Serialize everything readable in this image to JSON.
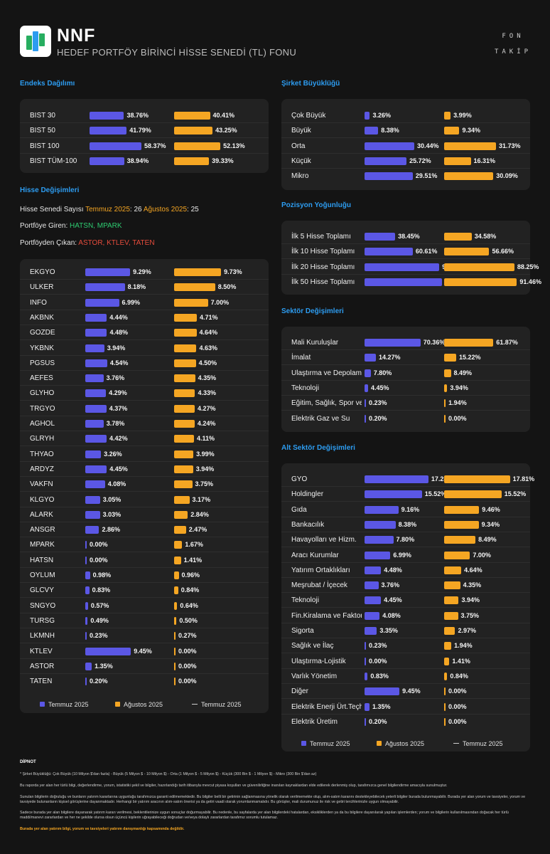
{
  "header": {
    "fund_code": "NNF",
    "fund_name": "HEDEF PORTFÖY BİRİNCİ HİSSE SENEDİ (TL) FONU",
    "brand_line1": "FON",
    "brand_line2": "TAKİP"
  },
  "colors": {
    "temmuz": "#5b57e5",
    "agustos": "#f5a623",
    "accent_title": "#2d9cf0",
    "card": "#222222"
  },
  "legend": {
    "temmuz": "Temmuz 2025",
    "agustos": "Ağustos 2025",
    "line": "Temmuz 2025"
  },
  "endeks": {
    "title": "Endeks Dağılımı",
    "rows": [
      {
        "label": "BIST 30",
        "temmuz": 38.76,
        "temmuz_text": "38.76%",
        "agustos": 40.41,
        "agustos_text": "40.41%"
      },
      {
        "label": "BIST 50",
        "temmuz": 41.79,
        "temmuz_text": "41.79%",
        "agustos": 43.25,
        "agustos_text": "43.25%"
      },
      {
        "label": "BIST 100",
        "temmuz": 58.37,
        "temmuz_text": "58.37%",
        "agustos": 52.13,
        "agustos_text": "52.13%"
      },
      {
        "label": "BIST TÜM-100",
        "temmuz": 38.94,
        "temmuz_text": "38.94%",
        "agustos": 39.33,
        "agustos_text": "39.33%"
      }
    ]
  },
  "hisse_degisimleri": {
    "title": "Hisse Değişimleri",
    "count_label": "Hisse Senedi Sayısı",
    "temmuz_label": "Temmuz 2025",
    "temmuz_count": ": 26",
    "agustos_label": "Ağustos 2025",
    "agustos_count": ": 25",
    "giren_label": "Portföye Giren: ",
    "giren_value": "HATSN, MPARK",
    "cikan_label": "Portföyden Çıkan: ",
    "cikan_value": "ASTOR, KTLEV, TATEN",
    "rows": [
      {
        "label": "EKGYO",
        "temmuz": 9.29,
        "temmuz_text": "9.29%",
        "agustos": 9.73,
        "agustos_text": "9.73%"
      },
      {
        "label": "ULKER",
        "temmuz": 8.18,
        "temmuz_text": "8.18%",
        "agustos": 8.5,
        "agustos_text": "8.50%"
      },
      {
        "label": "INFO",
        "temmuz": 6.99,
        "temmuz_text": "6.99%",
        "agustos": 7.0,
        "agustos_text": "7.00%"
      },
      {
        "label": "AKBNK",
        "temmuz": 4.44,
        "temmuz_text": "4.44%",
        "agustos": 4.71,
        "agustos_text": "4.71%"
      },
      {
        "label": "GOZDE",
        "temmuz": 4.48,
        "temmuz_text": "4.48%",
        "agustos": 4.64,
        "agustos_text": "4.64%"
      },
      {
        "label": "YKBNK",
        "temmuz": 3.94,
        "temmuz_text": "3.94%",
        "agustos": 4.63,
        "agustos_text": "4.63%"
      },
      {
        "label": "PGSUS",
        "temmuz": 4.54,
        "temmuz_text": "4.54%",
        "agustos": 4.5,
        "agustos_text": "4.50%"
      },
      {
        "label": "AEFES",
        "temmuz": 3.76,
        "temmuz_text": "3.76%",
        "agustos": 4.35,
        "agustos_text": "4.35%"
      },
      {
        "label": "GLYHO",
        "temmuz": 4.29,
        "temmuz_text": "4.29%",
        "agustos": 4.33,
        "agustos_text": "4.33%"
      },
      {
        "label": "TRGYO",
        "temmuz": 4.37,
        "temmuz_text": "4.37%",
        "agustos": 4.27,
        "agustos_text": "4.27%"
      },
      {
        "label": "AGHOL",
        "temmuz": 3.78,
        "temmuz_text": "3.78%",
        "agustos": 4.24,
        "agustos_text": "4.24%"
      },
      {
        "label": "GLRYH",
        "temmuz": 4.42,
        "temmuz_text": "4.42%",
        "agustos": 4.11,
        "agustos_text": "4.11%"
      },
      {
        "label": "THYAO",
        "temmuz": 3.26,
        "temmuz_text": "3.26%",
        "agustos": 3.99,
        "agustos_text": "3.99%"
      },
      {
        "label": "ARDYZ",
        "temmuz": 4.45,
        "temmuz_text": "4.45%",
        "agustos": 3.94,
        "agustos_text": "3.94%"
      },
      {
        "label": "VAKFN",
        "temmuz": 4.08,
        "temmuz_text": "4.08%",
        "agustos": 3.75,
        "agustos_text": "3.75%"
      },
      {
        "label": "KLGYO",
        "temmuz": 3.05,
        "temmuz_text": "3.05%",
        "agustos": 3.17,
        "agustos_text": "3.17%"
      },
      {
        "label": "ALARK",
        "temmuz": 3.03,
        "temmuz_text": "3.03%",
        "agustos": 2.84,
        "agustos_text": "2.84%"
      },
      {
        "label": "ANSGR",
        "temmuz": 2.86,
        "temmuz_text": "2.86%",
        "agustos": 2.47,
        "agustos_text": "2.47%"
      },
      {
        "label": "MPARK",
        "temmuz": 0.0,
        "temmuz_text": "0.00%",
        "agustos": 1.67,
        "agustos_text": "1.67%"
      },
      {
        "label": "HATSN",
        "temmuz": 0.0,
        "temmuz_text": "0.00%",
        "agustos": 1.41,
        "agustos_text": "1.41%"
      },
      {
        "label": "OYLUM",
        "temmuz": 0.98,
        "temmuz_text": "0.98%",
        "agustos": 0.96,
        "agustos_text": "0.96%"
      },
      {
        "label": "GLCVY",
        "temmuz": 0.83,
        "temmuz_text": "0.83%",
        "agustos": 0.84,
        "agustos_text": "0.84%"
      },
      {
        "label": "SNGYO",
        "temmuz": 0.57,
        "temmuz_text": "0.57%",
        "agustos": 0.64,
        "agustos_text": "0.64%"
      },
      {
        "label": "TURSG",
        "temmuz": 0.49,
        "temmuz_text": "0.49%",
        "agustos": 0.5,
        "agustos_text": "0.50%"
      },
      {
        "label": "LKMNH",
        "temmuz": 0.23,
        "temmuz_text": "0.23%",
        "agustos": 0.27,
        "agustos_text": "0.27%"
      },
      {
        "label": "KTLEV",
        "temmuz": 9.45,
        "temmuz_text": "9.45%",
        "agustos": 0.0,
        "agustos_text": "0.00%"
      },
      {
        "label": "ASTOR",
        "temmuz": 1.35,
        "temmuz_text": "1.35%",
        "agustos": 0.0,
        "agustos_text": "0.00%"
      },
      {
        "label": "TATEN",
        "temmuz": 0.2,
        "temmuz_text": "0.20%",
        "agustos": 0.0,
        "agustos_text": "0.00%"
      }
    ]
  },
  "sirket": {
    "title": "Şirket Büyüklüğü",
    "rows": [
      {
        "label": "Çok Büyük",
        "temmuz": 3.26,
        "temmuz_text": "3.26%",
        "agustos": 3.99,
        "agustos_text": "3.99%"
      },
      {
        "label": "Büyük",
        "temmuz": 8.38,
        "temmuz_text": "8.38%",
        "agustos": 9.34,
        "agustos_text": "9.34%"
      },
      {
        "label": "Orta",
        "temmuz": 30.44,
        "temmuz_text": "30.44%",
        "agustos": 31.73,
        "agustos_text": "31.73%"
      },
      {
        "label": "Küçük",
        "temmuz": 25.72,
        "temmuz_text": "25.72%",
        "agustos": 16.31,
        "agustos_text": "16.31%"
      },
      {
        "label": "Mikro",
        "temmuz": 29.51,
        "temmuz_text": "29.51%",
        "agustos": 30.09,
        "agustos_text": "30.09%"
      }
    ]
  },
  "pozisyon": {
    "title": "Pozisyon Yoğunluğu",
    "rows": [
      {
        "label": "İlk 5 Hisse Toplamı",
        "temmuz": 38.45,
        "temmuz_text": "38.45%",
        "agustos": 34.58,
        "agustos_text": "34.58%"
      },
      {
        "label": "İlk 10 Hisse Toplamı",
        "temmuz": 60.61,
        "temmuz_text": "60.61%",
        "agustos": 56.66,
        "agustos_text": "56.66%"
      },
      {
        "label": "İlk 20 Hisse Toplamı",
        "temmuz": 94.01,
        "temmuz_text": "94.01%",
        "agustos": 88.25,
        "agustos_text": "88.25%"
      },
      {
        "label": "İlk 50 Hisse Toplamı",
        "temmuz": 97.31,
        "temmuz_text": "97.31%",
        "agustos": 91.46,
        "agustos_text": "91.46%"
      }
    ]
  },
  "sektor": {
    "title": "Sektör Değişimleri",
    "rows": [
      {
        "label": "Mali Kuruluşlar",
        "temmuz": 70.36,
        "temmuz_text": "70.36%",
        "agustos": 61.87,
        "agustos_text": "61.87%"
      },
      {
        "label": "İmalat",
        "temmuz": 14.27,
        "temmuz_text": "14.27%",
        "agustos": 15.22,
        "agustos_text": "15.22%"
      },
      {
        "label": "Ulaştırma ve Depolama",
        "temmuz": 7.8,
        "temmuz_text": "7.80%",
        "agustos": 8.49,
        "agustos_text": "8.49%"
      },
      {
        "label": "Teknoloji",
        "temmuz": 4.45,
        "temmuz_text": "4.45%",
        "agustos": 3.94,
        "agustos_text": "3.94%"
      },
      {
        "label": "Eğitim, Sağlık, Spor ve",
        "temmuz": 0.23,
        "temmuz_text": "0.23%",
        "agustos": 1.94,
        "agustos_text": "1.94%"
      },
      {
        "label": "Elektrik Gaz ve Su",
        "temmuz": 0.2,
        "temmuz_text": "0.20%",
        "agustos": 0.0,
        "agustos_text": "0.00%"
      }
    ]
  },
  "alt_sektor": {
    "title": "Alt Sektör Değişimleri",
    "rows": [
      {
        "label": "GYO",
        "temmuz": 17.28,
        "temmuz_text": "17.28%",
        "agustos": 17.81,
        "agustos_text": "17.81%"
      },
      {
        "label": "Holdingler",
        "temmuz": 15.52,
        "temmuz_text": "15.52%",
        "agustos": 15.52,
        "agustos_text": "15.52%"
      },
      {
        "label": "Gıda",
        "temmuz": 9.16,
        "temmuz_text": "9.16%",
        "agustos": 9.46,
        "agustos_text": "9.46%"
      },
      {
        "label": "Bankacılık",
        "temmuz": 8.38,
        "temmuz_text": "8.38%",
        "agustos": 9.34,
        "agustos_text": "9.34%"
      },
      {
        "label": "Havayolları ve Hizm.",
        "temmuz": 7.8,
        "temmuz_text": "7.80%",
        "agustos": 8.49,
        "agustos_text": "8.49%"
      },
      {
        "label": "Aracı Kurumlar",
        "temmuz": 6.99,
        "temmuz_text": "6.99%",
        "agustos": 7.0,
        "agustos_text": "7.00%"
      },
      {
        "label": "Yatırım Ortaklıkları",
        "temmuz": 4.48,
        "temmuz_text": "4.48%",
        "agustos": 4.64,
        "agustos_text": "4.64%"
      },
      {
        "label": "Meşrubat / İçecek",
        "temmuz": 3.76,
        "temmuz_text": "3.76%",
        "agustos": 4.35,
        "agustos_text": "4.35%"
      },
      {
        "label": "Teknoloji",
        "temmuz": 4.45,
        "temmuz_text": "4.45%",
        "agustos": 3.94,
        "agustos_text": "3.94%"
      },
      {
        "label": "Fin.Kiralama ve Faktoring",
        "temmuz": 4.08,
        "temmuz_text": "4.08%",
        "agustos": 3.75,
        "agustos_text": "3.75%"
      },
      {
        "label": "Sigorta",
        "temmuz": 3.35,
        "temmuz_text": "3.35%",
        "agustos": 2.97,
        "agustos_text": "2.97%"
      },
      {
        "label": "Sağlık ve İlaç",
        "temmuz": 0.23,
        "temmuz_text": "0.23%",
        "agustos": 1.94,
        "agustos_text": "1.94%"
      },
      {
        "label": "Ulaştırma-Lojistik",
        "temmuz": 0.0,
        "temmuz_text": "0.00%",
        "agustos": 1.41,
        "agustos_text": "1.41%"
      },
      {
        "label": "Varlık Yönetim",
        "temmuz": 0.83,
        "temmuz_text": "0.83%",
        "agustos": 0.84,
        "agustos_text": "0.84%"
      },
      {
        "label": "Diğer",
        "temmuz": 9.45,
        "temmuz_text": "9.45%",
        "agustos": 0.0,
        "agustos_text": "0.00%"
      },
      {
        "label": "Elektrik Enerji Ürt.Teçhizatı",
        "temmuz": 1.35,
        "temmuz_text": "1.35%",
        "agustos": 0.0,
        "agustos_text": "0.00%"
      },
      {
        "label": "Elektrik Üretim",
        "temmuz": 0.2,
        "temmuz_text": "0.20%",
        "agustos": 0.0,
        "agustos_text": "0.00%"
      }
    ]
  },
  "footnote": {
    "title": "DİPNOT",
    "p1": "* Şirket Büyüklüğü: Çok Büyük (10 Milyon $'dan fazla) - Büyük (5 Milyon $ - 10 Milyon $) - Orta (1 Milyon $ - 5 Milyon $) - Küçük (300 Bin $ - 1 Milyon $) - Mikro (300 Bin $'dan az)",
    "p2": "Bu raporda yer alan her türlü bilgi, değerlendirme, yorum, istatistiki şekil ve bilgiler, hazırlandığı tarih itibarıyla mevcut piyasa koşulları ve güvenilirliğine inanılan kaynaklardan elde edilerek derlenmiş olup, tarafımızca genel bilgilendirme amacıyla sunulmuştur.",
    "p3": "Sunulan bilgilerin doğruluğu ve bunların yatırım kararlarına uygunluğu tarafımızca garanti edilmemektedir. Bu bilgiler belli bir getirinin sağlanmasına yönelik olarak verilmemekte olup, alım-satım kararını destekleyebilecek yeterli bilgiler burada bulunmayabilir. Burada yer alan yorum ve tavsiyeler, yorum ve tavsiyede bulunanların kişisel görüşlerine dayanmaktadır. Herhangi bir yatırım aracının alım-satım önerisi ya da getiri vaadi olarak yorumlanmamalıdır. Bu görüşler, mali durumunuz ile risk ve getiri tercihlerinizle uygun olmayabilir.",
    "p4": "Sadece burada yer alan bilgilere dayanarak yatırım kararı verilmesi, beklentilerinize uygun sonuçlar doğurmayabilir. Bu nedenle, bu sayfalarda yer alan bilgilerdeki hatalardan, eksikliklerden ya da bu bilgilere dayanılarak yapılan işlemlerden; yorum ve bilgilerin kullanılmasından doğacak her türlü maddi/manevi zararlardan ve her ne şekilde olursa olsun üçüncü kişilerin uğrayabileceği doğrudan ve/veya dolaylı zararlardan tarafımız sorumlu tutulamaz.",
    "p5": "Burada yer alan yatırım bilgi, yorum ve tavsiyeleri yatırım danışmanlığı kapsamında değildir."
  }
}
